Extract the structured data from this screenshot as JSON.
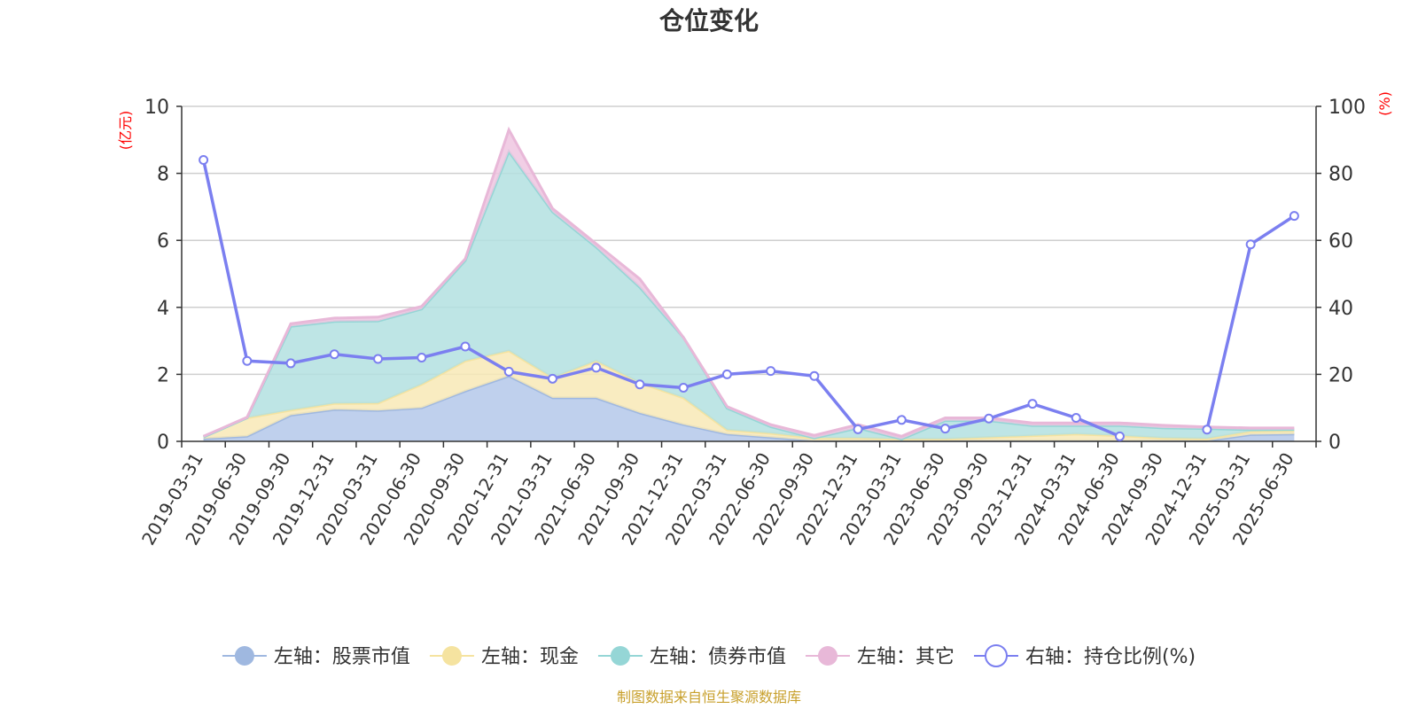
{
  "chart_data": {
    "type": "area",
    "title": "仓位变化",
    "left_unit": "(亿元)",
    "right_unit": "(%)",
    "categories": [
      "2019-03-31",
      "2019-06-30",
      "2019-09-30",
      "2019-12-31",
      "2020-03-31",
      "2020-06-30",
      "2020-09-30",
      "2020-12-31",
      "2021-03-31",
      "2021-06-30",
      "2021-09-30",
      "2021-12-31",
      "2022-03-31",
      "2022-06-30",
      "2022-09-30",
      "2022-12-31",
      "2023-03-31",
      "2023-06-30",
      "2023-09-30",
      "2023-12-31",
      "2024-03-31",
      "2024-06-30",
      "2024-09-30",
      "2024-12-31",
      "2025-03-31",
      "2025-06-30"
    ],
    "y_left": {
      "min": 0,
      "max": 10,
      "ticks": [
        "0",
        "2",
        "4",
        "6",
        "8",
        "10"
      ]
    },
    "y_right": {
      "min": 0,
      "max": 100,
      "ticks": [
        "0",
        "20",
        "40",
        "60",
        "80",
        "100"
      ]
    },
    "stacked_series": [
      {
        "name": "股票市值",
        "legend": "左轴：股票市值",
        "color": "#9fb8e0",
        "fill": "#b4c8ea",
        "values": [
          0.08,
          0.15,
          0.78,
          0.95,
          0.92,
          1.0,
          1.5,
          1.95,
          1.3,
          1.3,
          0.85,
          0.5,
          0.22,
          0.12,
          0.02,
          0.02,
          0.02,
          0.02,
          0.02,
          0.02,
          0.02,
          0.02,
          0.02,
          0.02,
          0.2,
          0.22
        ]
      },
      {
        "name": "现金",
        "legend": "左轴：现金",
        "color": "#f5e3a0",
        "fill": "#f8e9b6",
        "values": [
          0.05,
          0.55,
          0.15,
          0.18,
          0.22,
          0.7,
          0.9,
          0.75,
          0.6,
          1.1,
          0.9,
          0.8,
          0.12,
          0.12,
          0.08,
          0.08,
          0.05,
          0.05,
          0.1,
          0.15,
          0.2,
          0.15,
          0.08,
          0.06,
          0.1,
          0.1
        ]
      },
      {
        "name": "债券市值",
        "legend": "左轴：债券市值",
        "color": "#95d6d6",
        "fill": "#b3e1e1",
        "values": [
          0,
          0,
          2.5,
          2.45,
          2.45,
          2.25,
          3.0,
          5.95,
          4.95,
          3.4,
          2.85,
          1.8,
          0.65,
          0.2,
          0,
          0.3,
          0,
          0.55,
          0.5,
          0.3,
          0.25,
          0.3,
          0.3,
          0.3,
          0.05,
          0.03
        ]
      },
      {
        "name": "其它",
        "legend": "左轴：其它",
        "color": "#e8b8d8",
        "fill": "#efc6e0",
        "values": [
          0.02,
          0.02,
          0.08,
          0.1,
          0.12,
          0.08,
          0.05,
          0.65,
          0.1,
          0.1,
          0.25,
          0.0,
          0.05,
          0.06,
          0.08,
          0.1,
          0.08,
          0.08,
          0.08,
          0.08,
          0.08,
          0.08,
          0.08,
          0.05,
          0.05,
          0.05
        ]
      }
    ],
    "line_series": {
      "name": "持仓比例(%)",
      "legend": "右轴：持仓比例(%)",
      "color": "#7b7ff0",
      "values": [
        84,
        24,
        23.3,
        26,
        24.6,
        25,
        28.3,
        20.8,
        18.7,
        22,
        17,
        16,
        20,
        21,
        19.5,
        3.6,
        6.4,
        3.8,
        6.8,
        11.2,
        7,
        1.5,
        null,
        3.5,
        58.8,
        67.3
      ]
    },
    "source_note": "制图数据来自恒生聚源数据库"
  }
}
